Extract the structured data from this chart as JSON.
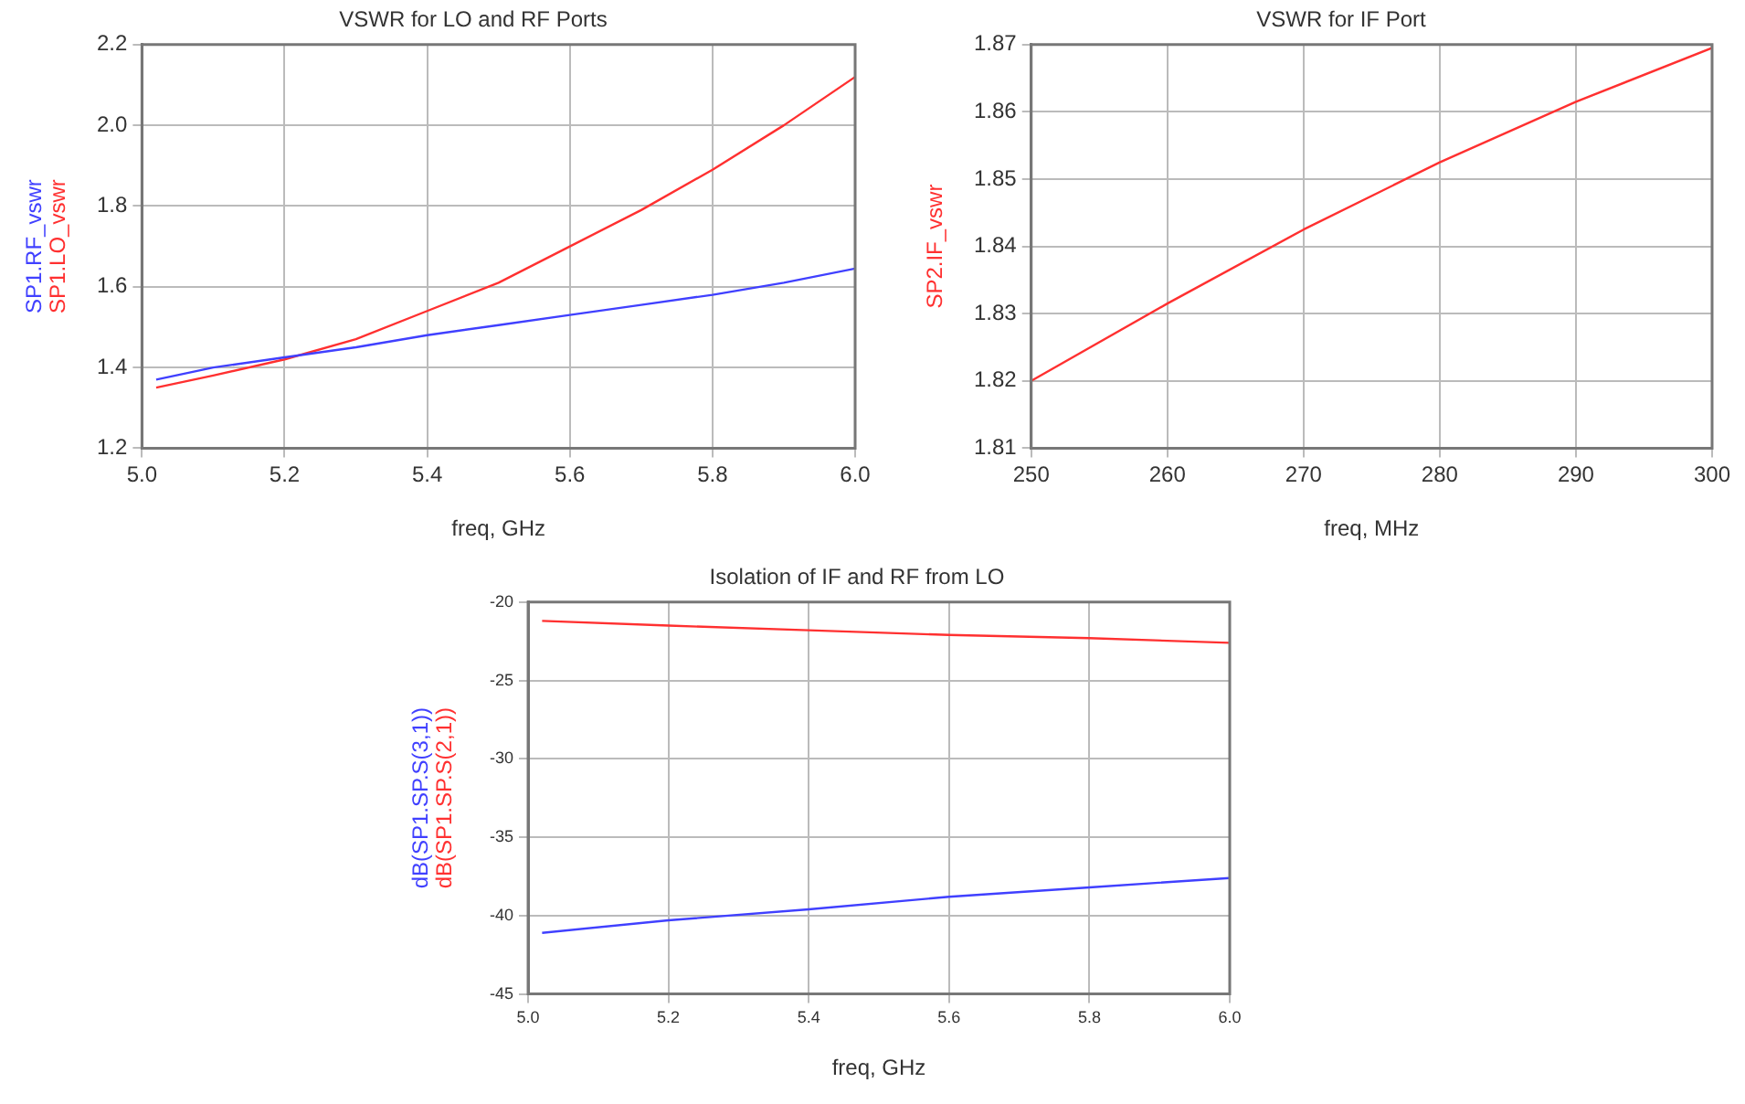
{
  "chart_data": [
    {
      "type": "line",
      "title": "VSWR for LO and RF Ports",
      "xlabel": "freq, GHz",
      "grid": true,
      "legend": false,
      "xlim": [
        5.0,
        6.0
      ],
      "xticks": [
        {
          "value": 5.0,
          "label": "5.0"
        },
        {
          "value": 5.2,
          "label": "5.2"
        },
        {
          "value": 5.4,
          "label": "5.4"
        },
        {
          "value": 5.6,
          "label": "5.6"
        },
        {
          "value": 5.8,
          "label": "5.8"
        },
        {
          "value": 6.0,
          "label": "6.0"
        }
      ],
      "ylim": [
        1.2,
        2.2
      ],
      "yticks": [
        {
          "value": 1.2,
          "label": "1.2"
        },
        {
          "value": 1.4,
          "label": "1.4"
        },
        {
          "value": 1.6,
          "label": "1.6"
        },
        {
          "value": 1.8,
          "label": "1.8"
        },
        {
          "value": 2.0,
          "label": "2.0"
        },
        {
          "value": 2.2,
          "label": "2.2"
        }
      ],
      "x": [
        5.02,
        5.1,
        5.2,
        5.3,
        5.4,
        5.5,
        5.6,
        5.7,
        5.8,
        5.9,
        6.0
      ],
      "series": [
        {
          "name": "SP1.RF_vswr",
          "color": "#4040ff",
          "values": [
            1.37,
            1.4,
            1.425,
            1.45,
            1.48,
            1.505,
            1.53,
            1.555,
            1.58,
            1.61,
            1.645
          ]
        },
        {
          "name": "SP1.LO_vswr",
          "color": "#ff3030",
          "values": [
            1.35,
            1.38,
            1.42,
            1.47,
            1.54,
            1.61,
            1.7,
            1.79,
            1.89,
            2.0,
            2.12
          ]
        }
      ]
    },
    {
      "type": "line",
      "title": "VSWR for IF Port",
      "xlabel": "freq, MHz",
      "grid": true,
      "legend": false,
      "xlim": [
        250,
        300
      ],
      "xticks": [
        250,
        260,
        270,
        280,
        290,
        300
      ],
      "ylim": [
        1.81,
        1.87
      ],
      "yticks": [
        1.81,
        1.82,
        1.83,
        1.84,
        1.85,
        1.86,
        1.87
      ],
      "x": [
        250,
        260,
        270,
        280,
        290,
        300
      ],
      "series": [
        {
          "name": "SP2.IF_vswr",
          "color": "#ff3030",
          "values": [
            1.82,
            1.8315,
            1.8425,
            1.8525,
            1.8615,
            1.8695
          ]
        }
      ]
    },
    {
      "type": "line",
      "title": "Isolation of IF and RF from LO",
      "xlabel": "freq, GHz",
      "grid": true,
      "legend": false,
      "xlim": [
        5.0,
        6.0
      ],
      "xticks": [
        {
          "value": 5.0,
          "label": "5.0"
        },
        {
          "value": 5.2,
          "label": "5.2"
        },
        {
          "value": 5.4,
          "label": "5.4"
        },
        {
          "value": 5.6,
          "label": "5.6"
        },
        {
          "value": 5.8,
          "label": "5.8"
        },
        {
          "value": 6.0,
          "label": "6.0"
        }
      ],
      "ylim": [
        -45,
        -20
      ],
      "yticks": [
        -45,
        -40,
        -35,
        -30,
        -25,
        -20
      ],
      "x": [
        5.02,
        5.2,
        5.4,
        5.6,
        5.8,
        6.0
      ],
      "series": [
        {
          "name": "dB(SP1.SP.S(3,1))",
          "color": "#4040ff",
          "values": [
            -41.1,
            -40.3,
            -39.6,
            -38.8,
            -38.2,
            -37.6
          ]
        },
        {
          "name": "dB(SP1.SP.S(2,1))",
          "color": "#ff3030",
          "values": [
            -21.2,
            -21.5,
            -21.8,
            -22.1,
            -22.3,
            -22.6
          ]
        }
      ]
    }
  ]
}
